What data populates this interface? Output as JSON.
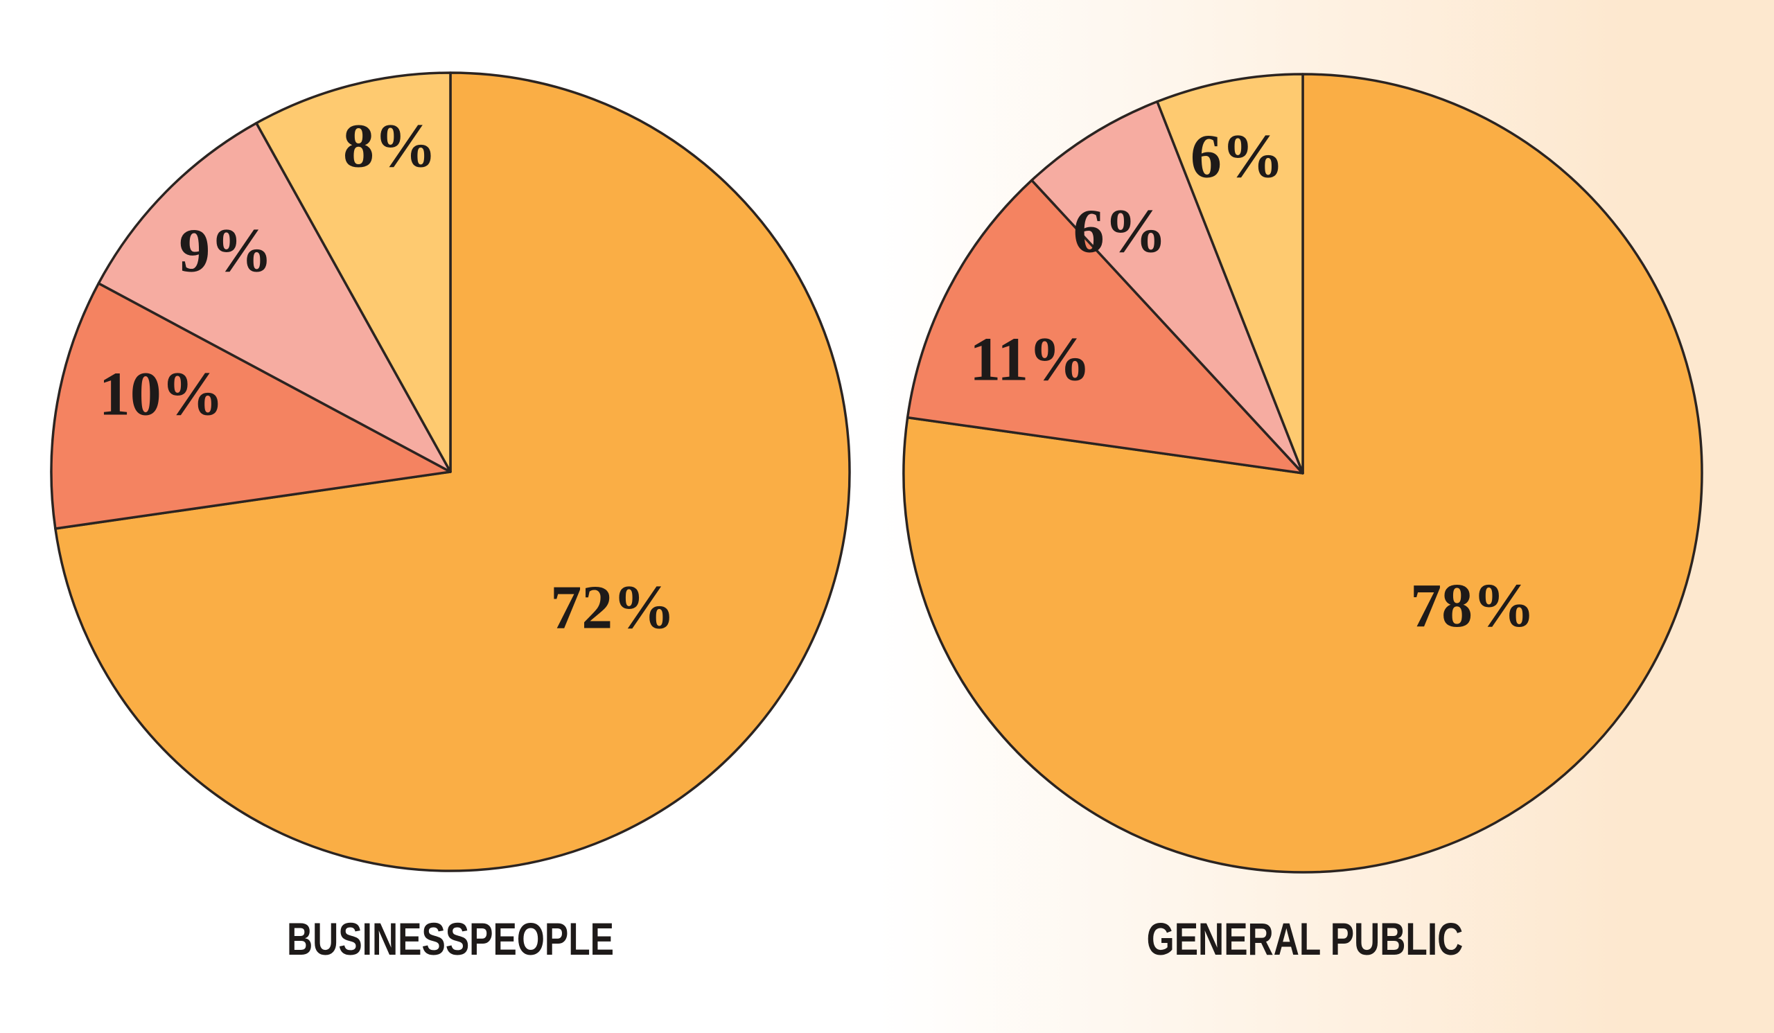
{
  "page": {
    "background_gradient": {
      "type": "linear-horizontal",
      "from_color": "#ffffff",
      "to_color": "#fde8cf",
      "white_until_pct": 49.5,
      "full_color_from_pct": 91.5
    },
    "outline_color": "#2b2421",
    "text_color": "#1e1a19"
  },
  "chart_data": [
    {
      "type": "pie",
      "title": "BUSINESSPEOPLE",
      "start_angle_deg": 0,
      "direction": "clockwise",
      "legend": "none",
      "categories": [
        "72%",
        "10%",
        "9%",
        "8%"
      ],
      "values": [
        72,
        10,
        9,
        8
      ],
      "slices": [
        {
          "label": "72%",
          "value": 72,
          "color": "#faae45",
          "label_r": 0.53,
          "label_angle_offset_deg": -1
        },
        {
          "label": "10%",
          "value": 10,
          "color": "#f48361",
          "label_r": 0.75,
          "label_angle_offset_deg": 5
        },
        {
          "label": "9%",
          "value": 9,
          "color": "#f6aca1",
          "label_r": 0.79,
          "label_angle_offset_deg": 0
        },
        {
          "label": "8%",
          "value": 8,
          "color": "#feca70",
          "label_r": 0.83,
          "label_angle_offset_deg": 4
        }
      ]
    },
    {
      "type": "pie",
      "title": "GENERAL PUBLIC",
      "start_angle_deg": 0,
      "direction": "clockwise",
      "legend": "none",
      "categories": [
        "78%",
        "11%",
        "6%",
        "6%"
      ],
      "values": [
        78,
        11,
        6,
        6
      ],
      "slices": [
        {
          "label": "78%",
          "value": 78,
          "color": "#faae45",
          "label_r": 0.54,
          "label_angle_offset_deg": -11
        },
        {
          "label": "11%",
          "value": 11,
          "color": "#f48361",
          "label_r": 0.74,
          "label_angle_offset_deg": -5
        },
        {
          "label": "6%",
          "value": 6,
          "color": "#f6aca1",
          "label_r": 0.76,
          "label_angle_offset_deg": -5
        },
        {
          "label": "6%",
          "value": 6,
          "color": "#feca70",
          "label_r": 0.81,
          "label_angle_offset_deg": -1
        }
      ]
    }
  ]
}
